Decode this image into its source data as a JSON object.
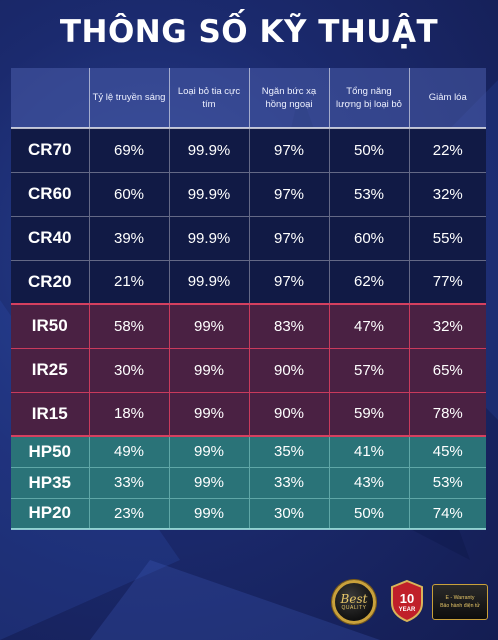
{
  "title": "THÔNG SỐ KỸ THUẬT",
  "table": {
    "headers": [
      "",
      "Tỷ lệ truyền sáng",
      "Loại bỏ tia cực tím",
      "Ngăn bức xạ hồng ngoại",
      "Tổng năng lượng bị loại bỏ",
      "Giảm lóa"
    ],
    "rows": [
      {
        "name": "CR70",
        "group": "cr",
        "values": [
          "69%",
          "99.9%",
          "97%",
          "50%",
          "22%"
        ]
      },
      {
        "name": "CR60",
        "group": "cr",
        "values": [
          "60%",
          "99.9%",
          "97%",
          "53%",
          "32%"
        ]
      },
      {
        "name": "CR40",
        "group": "cr",
        "values": [
          "39%",
          "99.9%",
          "97%",
          "60%",
          "55%"
        ]
      },
      {
        "name": "CR20",
        "group": "cr",
        "values": [
          "21%",
          "99.9%",
          "97%",
          "62%",
          "77%"
        ]
      },
      {
        "name": "IR50",
        "group": "ir",
        "values": [
          "58%",
          "99%",
          "83%",
          "47%",
          "32%"
        ]
      },
      {
        "name": "IR25",
        "group": "ir",
        "values": [
          "30%",
          "99%",
          "90%",
          "57%",
          "65%"
        ]
      },
      {
        "name": "IR15",
        "group": "ir",
        "values": [
          "18%",
          "99%",
          "90%",
          "59%",
          "78%"
        ]
      },
      {
        "name": "HP50",
        "group": "hp",
        "values": [
          "49%",
          "99%",
          "35%",
          "41%",
          "45%"
        ]
      },
      {
        "name": "HP35",
        "group": "hp",
        "values": [
          "33%",
          "99%",
          "33%",
          "43%",
          "53%"
        ]
      },
      {
        "name": "HP20",
        "group": "hp",
        "values": [
          "23%",
          "99%",
          "30%",
          "50%",
          "74%"
        ]
      }
    ]
  },
  "badges": {
    "best_quality": {
      "line1": "Best",
      "line2": "QUALITY"
    },
    "ten_year": {
      "number": "10",
      "unit": "YEAR"
    },
    "warranty": {
      "line1": "E - Warranty",
      "line2": "Bảo hành điện tử"
    }
  },
  "colors": {
    "background": "#1b2a6e",
    "cr_rows": "#111a45",
    "ir_rows": "#4a2143",
    "ir_border": "#c93a5c",
    "hp_rows": "#2a7378",
    "gold": "#c9a13b"
  }
}
